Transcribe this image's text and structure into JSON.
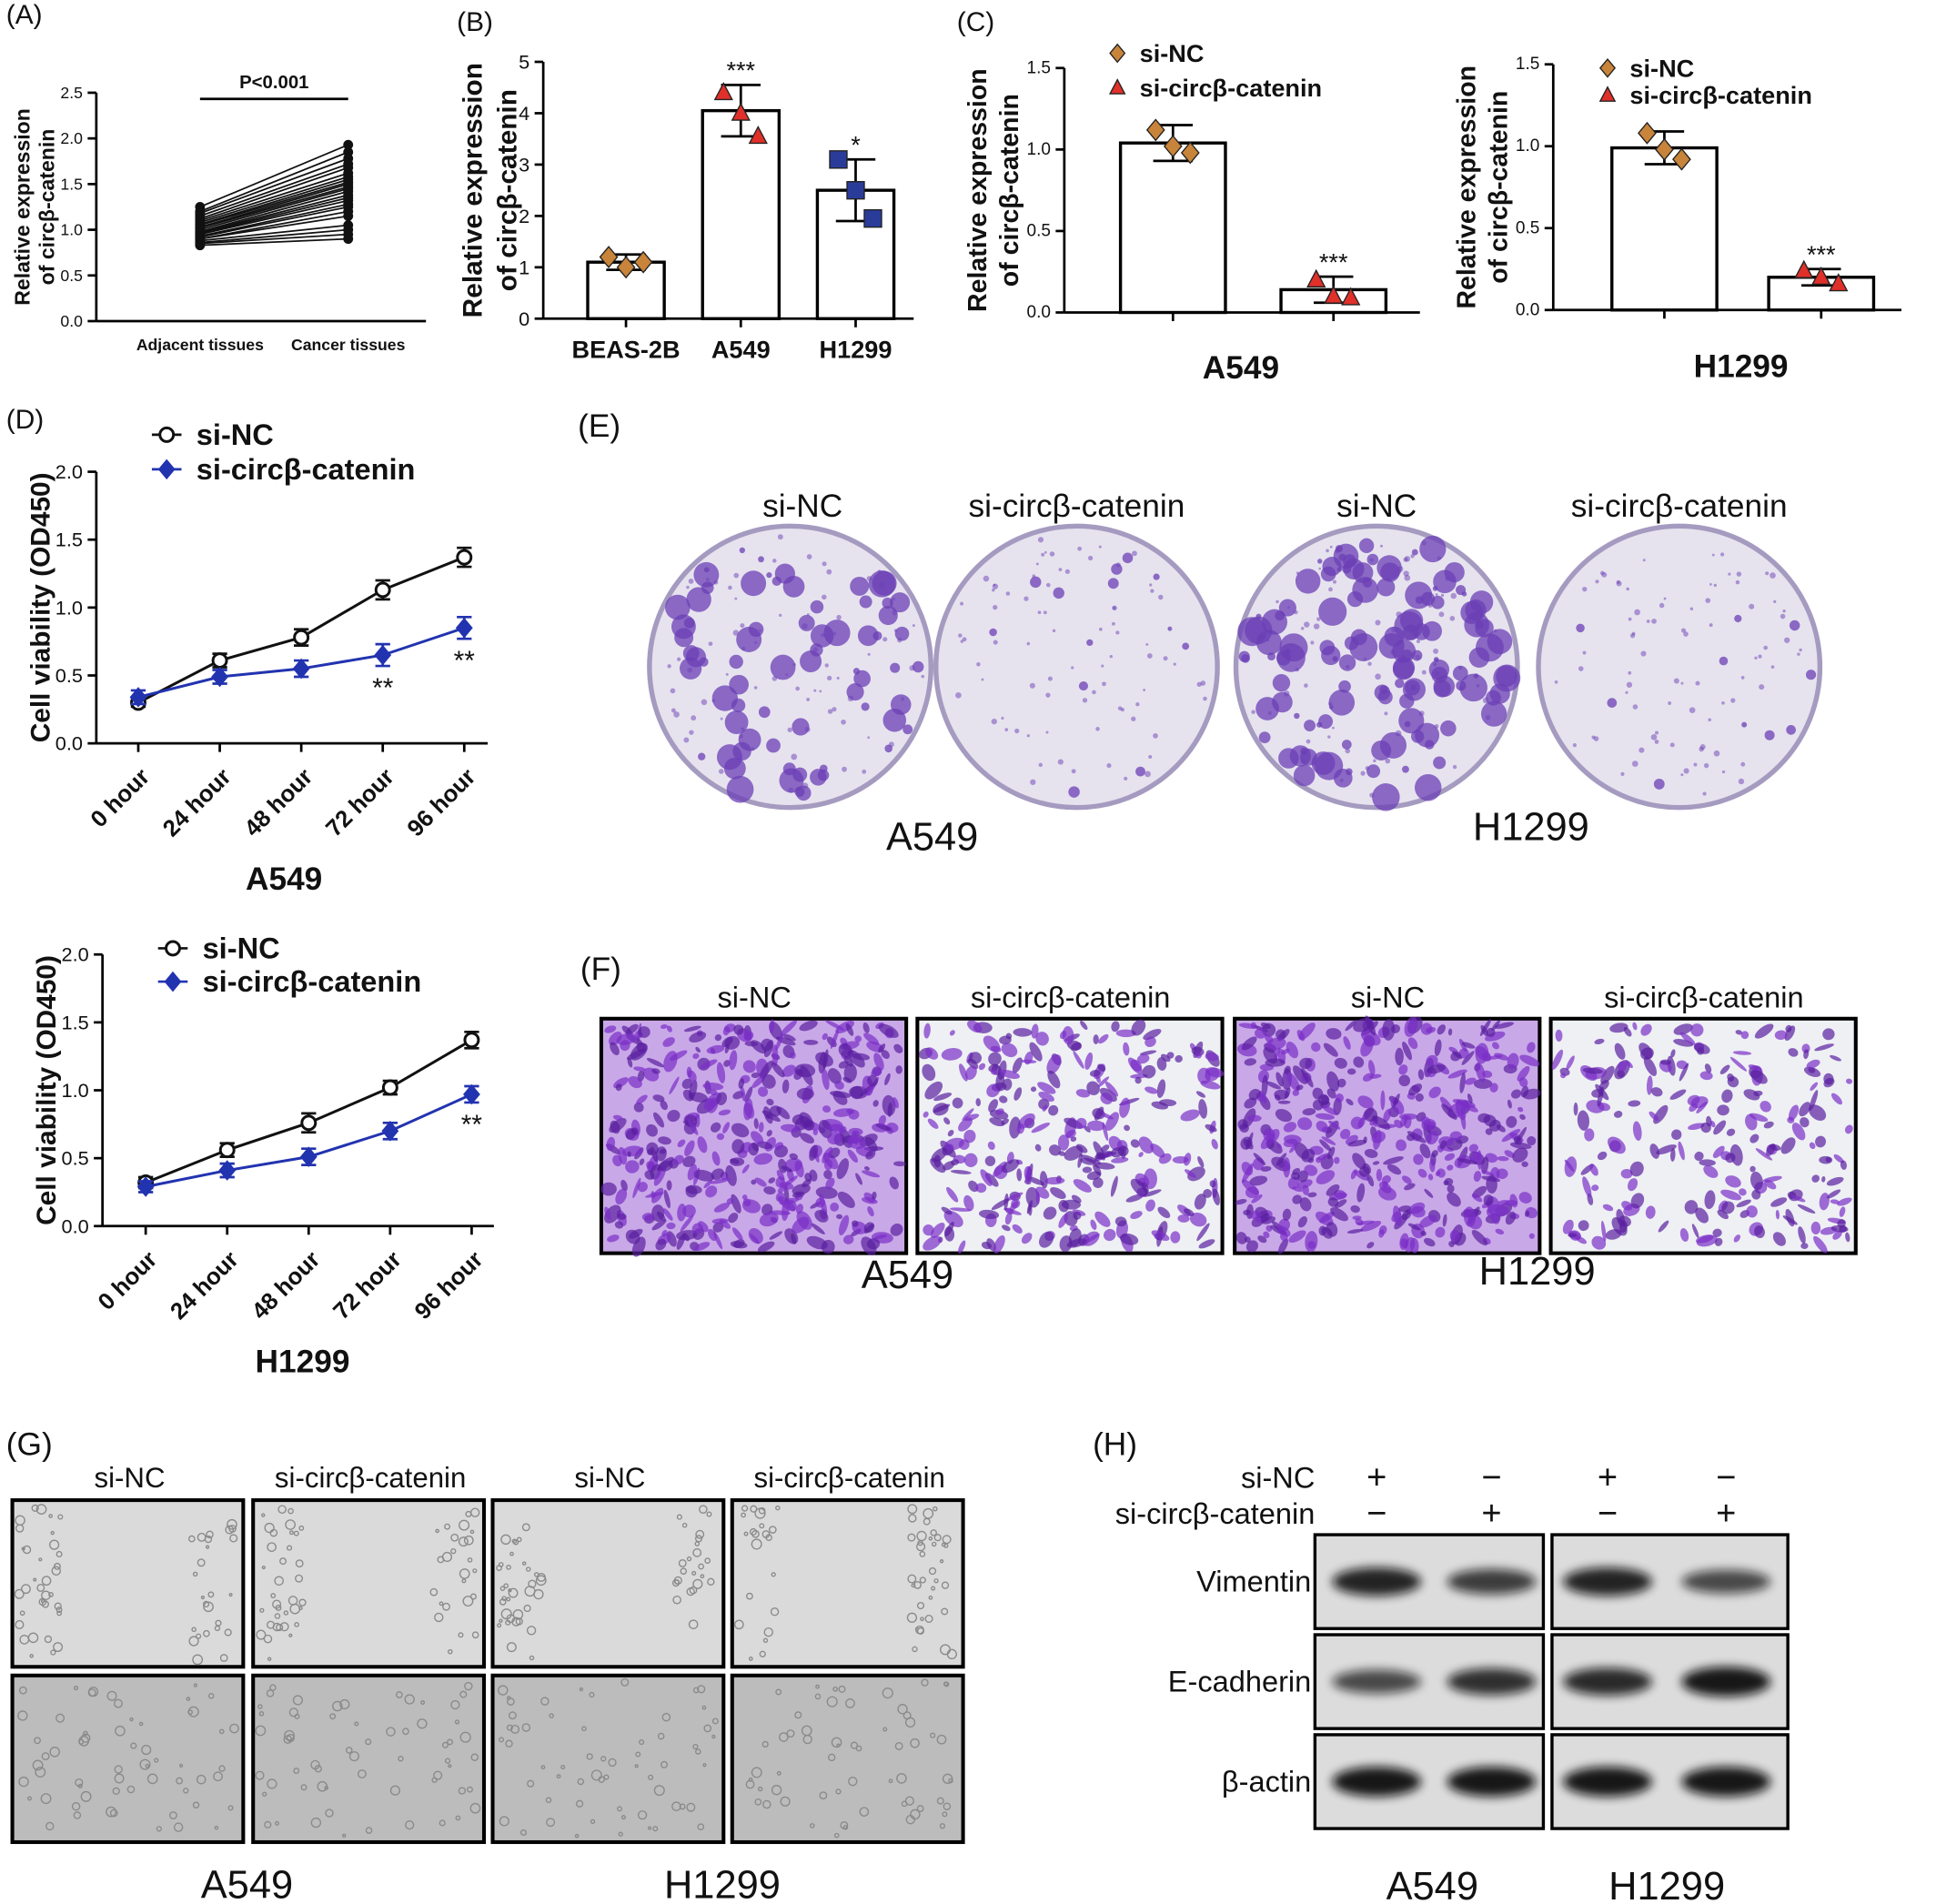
{
  "chart_data": [
    {
      "type": "paired",
      "label": "(A)",
      "ylabel": [
        "Relative expression",
        "of circβ-catenin"
      ],
      "annotation": "P<0.001",
      "categories": [
        "Adjacent tissues",
        "Cancer tissues"
      ],
      "values": [
        [
          1.25,
          1.93
        ],
        [
          1.2,
          1.85
        ],
        [
          1.18,
          1.78
        ],
        [
          1.15,
          1.72
        ],
        [
          1.12,
          1.68
        ],
        [
          1.1,
          1.62
        ],
        [
          1.08,
          1.58
        ],
        [
          1.06,
          1.55
        ],
        [
          1.05,
          1.52
        ],
        [
          1.03,
          1.5
        ],
        [
          1.02,
          1.47
        ],
        [
          1.0,
          1.45
        ],
        [
          0.98,
          1.42
        ],
        [
          0.97,
          1.38
        ],
        [
          0.96,
          1.35
        ],
        [
          0.95,
          1.32
        ],
        [
          0.93,
          1.28
        ],
        [
          0.92,
          1.25
        ],
        [
          0.9,
          1.2
        ],
        [
          0.9,
          1.15
        ],
        [
          0.88,
          1.05
        ],
        [
          0.86,
          1.0
        ],
        [
          0.85,
          0.95
        ],
        [
          0.83,
          0.9
        ]
      ],
      "color": "#111111",
      "ylim": [
        0,
        2.5
      ],
      "yticks": [
        {
          "value": 0,
          "label": "0.0"
        },
        {
          "value": 0.5,
          "label": "0.5"
        },
        {
          "value": 1,
          "label": "1.0"
        },
        {
          "value": 1.5,
          "label": "1.5"
        },
        {
          "value": 2,
          "label": "2.0"
        },
        {
          "value": 2.5,
          "label": "2.5"
        }
      ]
    },
    {
      "type": "bar",
      "label": "(B)",
      "ylabel": [
        "Relative expression",
        "of circβ-catenin"
      ],
      "categories": [
        "BEAS-2B",
        "A549",
        "H1299"
      ],
      "legend": false,
      "values": [
        1.1,
        4.05,
        2.5
      ],
      "errors": [
        0.15,
        0.5,
        0.6
      ],
      "points": [
        [
          1.2,
          1.0,
          1.1
        ],
        [
          4.4,
          4.0,
          3.55
        ],
        [
          3.1,
          2.5,
          1.95
        ]
      ],
      "markers": [
        "diamond",
        "triangle",
        "square"
      ],
      "marker_colors": [
        "#c8843a",
        "#e0302a",
        "#2a3c9a"
      ],
      "annotations": [
        null,
        "***",
        "*"
      ],
      "ylim": [
        0,
        5
      ],
      "yticks": [
        0,
        1,
        2,
        3,
        4,
        5
      ]
    },
    {
      "type": "bar",
      "label": "(C)",
      "ylabel": [
        "Relative expression",
        "of circβ-catenin"
      ],
      "xlabel": "A549",
      "categories": [
        "si-NC",
        "si-circβ-catenin"
      ],
      "legend": true,
      "values": [
        1.04,
        0.14
      ],
      "errors": [
        0.11,
        0.08
      ],
      "points": [
        [
          1.12,
          1.02,
          0.98
        ],
        [
          0.2,
          0.1,
          0.09
        ]
      ],
      "markers": [
        "diamond",
        "triangle"
      ],
      "marker_colors": [
        "#c8843a",
        "#e0302a"
      ],
      "annotations": [
        null,
        "***"
      ],
      "ylim": [
        0,
        1.5
      ],
      "yticks": [
        {
          "value": 0,
          "label": "0.0"
        },
        {
          "value": 0.5,
          "label": "0.5"
        },
        {
          "value": 1,
          "label": "1.0"
        },
        {
          "value": 1.5,
          "label": "1.5"
        }
      ]
    },
    {
      "type": "bar",
      "ylabel": [
        "Relative expression",
        "of circβ-catenin"
      ],
      "xlabel": "H1299",
      "categories": [
        "si-NC",
        "si-circβ-catenin"
      ],
      "legend": true,
      "values": [
        0.99,
        0.2
      ],
      "errors": [
        0.1,
        0.05
      ],
      "points": [
        [
          1.08,
          0.98,
          0.92
        ],
        [
          0.24,
          0.2,
          0.16
        ]
      ],
      "markers": [
        "diamond",
        "triangle"
      ],
      "marker_colors": [
        "#c8843a",
        "#e0302a"
      ],
      "annotations": [
        null,
        "***"
      ],
      "ylim": [
        0,
        1.5
      ],
      "yticks": [
        {
          "value": 0,
          "label": "0.0"
        },
        {
          "value": 0.5,
          "label": "0.5"
        },
        {
          "value": 1,
          "label": "1.0"
        },
        {
          "value": 1.5,
          "label": "1.5"
        }
      ]
    },
    {
      "type": "line",
      "label": "(D)",
      "ylabel": "Cell viability (OD450)",
      "xlabel": "A549",
      "categories": [
        "0 hour",
        "24 hour",
        "48 hour",
        "72 hour",
        "96 hour"
      ],
      "series": [
        {
          "name": "si-NC",
          "color": "#111111",
          "marker": "circle",
          "values": [
            0.3,
            0.61,
            0.78,
            1.13,
            1.37
          ],
          "errors": [
            0.03,
            0.05,
            0.06,
            0.07,
            0.07
          ],
          "annotations": [
            null,
            null,
            null,
            null,
            null
          ]
        },
        {
          "name": "si-circβ-catenin",
          "color": "#2233b0",
          "marker": "diamond",
          "values": [
            0.34,
            0.49,
            0.55,
            0.65,
            0.85
          ],
          "errors": [
            0.05,
            0.05,
            0.06,
            0.08,
            0.08
          ],
          "annotations": [
            null,
            null,
            null,
            "**",
            "**"
          ]
        }
      ],
      "ylim": [
        0,
        2
      ],
      "yticks": [
        {
          "value": 0,
          "label": "0.0"
        },
        {
          "value": 0.5,
          "label": "0.5"
        },
        {
          "value": 1,
          "label": "1.0"
        },
        {
          "value": 1.5,
          "label": "1.5"
        },
        {
          "value": 2,
          "label": "2.0"
        }
      ]
    },
    {
      "type": "line",
      "ylabel": "Cell viability (OD450)",
      "xlabel": "H1299",
      "categories": [
        "0 hour",
        "24 hour",
        "48 hour",
        "72 hour",
        "96 hour"
      ],
      "series": [
        {
          "name": "si-NC",
          "color": "#111111",
          "marker": "circle",
          "values": [
            0.32,
            0.56,
            0.76,
            1.02,
            1.37
          ],
          "errors": [
            0.04,
            0.05,
            0.07,
            0.05,
            0.06
          ],
          "annotations": [
            null,
            null,
            null,
            null,
            null
          ]
        },
        {
          "name": "si-circβ-catenin",
          "color": "#2233b0",
          "marker": "diamond",
          "values": [
            0.29,
            0.41,
            0.51,
            0.7,
            0.97
          ],
          "errors": [
            0.04,
            0.05,
            0.06,
            0.06,
            0.06
          ],
          "annotations": [
            null,
            null,
            null,
            null,
            "**"
          ]
        }
      ],
      "ylim": [
        0,
        2
      ],
      "yticks": [
        {
          "value": 0,
          "label": "0.0"
        },
        {
          "value": 0.5,
          "label": "0.5"
        },
        {
          "value": 1,
          "label": "1.0"
        },
        {
          "value": 1.5,
          "label": "1.5"
        },
        {
          "value": 2,
          "label": "2.0"
        }
      ]
    }
  ],
  "panels": {
    "E": {
      "label": "(E)",
      "conditions": [
        "si-NC",
        "si-circβ-catenin",
        "si-NC",
        "si-circβ-catenin"
      ],
      "cells": [
        "A549",
        "H1299"
      ]
    },
    "F": {
      "label": "(F)",
      "conditions": [
        "si-NC",
        "si-circβ-catenin",
        "si-NC",
        "si-circβ-catenin"
      ],
      "cells": [
        "A549",
        "H1299"
      ]
    },
    "G": {
      "label": "(G)",
      "conditions": [
        "si-NC",
        "si-circβ-catenin",
        "si-NC",
        "si-circβ-catenin"
      ],
      "cells": [
        "A549",
        "H1299"
      ]
    },
    "H": {
      "label": "(H)",
      "rows": [
        {
          "name": "si-NC",
          "signs": [
            "+",
            "−",
            "+",
            "−"
          ]
        },
        {
          "name": "si-circβ-catenin",
          "signs": [
            "−",
            "+",
            "−",
            "+"
          ]
        }
      ],
      "proteins": [
        "Vimentin",
        "E-cadherin",
        "β-actin"
      ],
      "cells": [
        "A549",
        "H1299"
      ]
    }
  }
}
